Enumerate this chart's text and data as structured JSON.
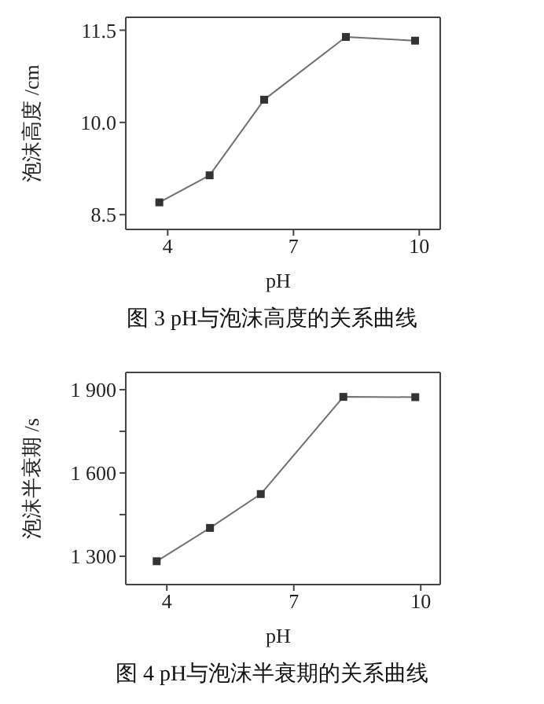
{
  "chart_data": [
    {
      "type": "line",
      "title": "图 3 pH与泡沫高度的关系曲线",
      "xlabel": "pH",
      "ylabel": "泡沫高度 /cm",
      "x": [
        3.8,
        5.0,
        6.3,
        8.25,
        9.9
      ],
      "series": [
        {
          "color": "#333333",
          "values": [
            8.7,
            9.14,
            10.37,
            11.39,
            11.33
          ]
        }
      ],
      "marker": "square",
      "xlim": [
        3.0,
        10.5
      ],
      "xticks": [
        4,
        7,
        10
      ],
      "ylim": [
        8.26,
        11.71
      ],
      "yticks": [
        {
          "value": 8.5,
          "label": "8.5"
        },
        {
          "value": 10,
          "label": "10.0"
        },
        {
          "value": 11.5,
          "label": "11.5"
        }
      ]
    },
    {
      "type": "line",
      "title": "图 4 pH与泡沫半衰期的关系曲线",
      "xlabel": "pH",
      "ylabel": "泡沫半衰期 /s",
      "x": [
        3.76,
        5.02,
        6.22,
        8.17,
        9.87
      ],
      "series": [
        {
          "color": "#333333",
          "values": [
            1282,
            1402,
            1524,
            1874,
            1873
          ]
        }
      ],
      "marker": "square",
      "xlim": [
        3.03,
        10.46
      ],
      "xticks": [
        4,
        7,
        10
      ],
      "ylim": [
        1198,
        1962
      ],
      "yticks": [
        {
          "value": 1300,
          "label": "1 300"
        },
        {
          "value": 1450,
          "label": null
        },
        {
          "value": 1600,
          "label": "1 600"
        },
        {
          "value": 1750,
          "label": null
        },
        {
          "value": 1900,
          "label": "1 900"
        }
      ]
    }
  ]
}
